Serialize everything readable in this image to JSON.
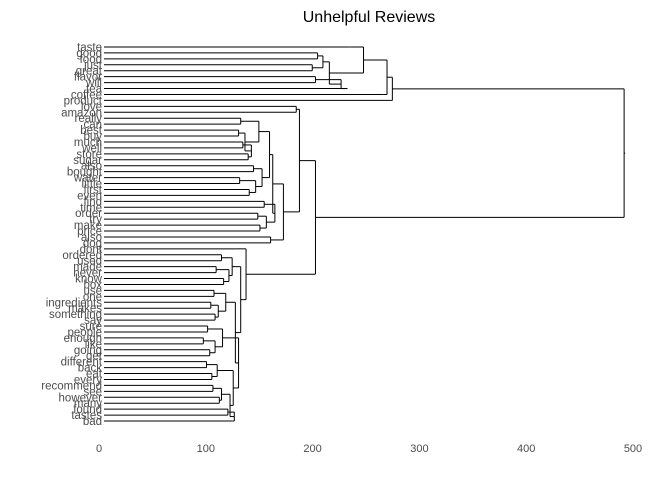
{
  "chart_data": {
    "type": "dendrogram",
    "orientation": "horizontal",
    "title": "Unhelpful Reviews",
    "xlabel": "",
    "ylabel": "",
    "xlim": [
      0,
      500
    ],
    "x_ticks": [
      0,
      100,
      200,
      300,
      400,
      500
    ],
    "grid": false,
    "leaves": [
      "taste",
      "good",
      "food",
      "just",
      "great",
      "flavor",
      "will",
      "tea",
      "coffee",
      "product",
      "love",
      "amazon",
      "really",
      "can",
      "best",
      "buy",
      "much",
      "well",
      "store",
      "sugar",
      "also",
      "bought",
      "water",
      "little",
      "first",
      "even",
      "find",
      "time",
      "order",
      "try",
      "make",
      "price",
      "also",
      "dog",
      "dont",
      "ordered",
      "used",
      "made",
      "never",
      "know",
      "box",
      "use",
      "one",
      "ingredients",
      "makes",
      "something",
      "say",
      "sure",
      "people",
      "enough",
      "like",
      "going",
      "get",
      "different",
      "back",
      "eat",
      "every",
      "recommend",
      "see",
      "however",
      "many",
      "found",
      "tastes",
      "bad"
    ],
    "tree": {
      "h": 487,
      "c": [
        {
          "h": 270,
          "c": [
            {
              "h": 265,
              "c": [
                {
                  "h": 243,
                  "c": [
                    {
                      "h": 230,
                      "c": [
                        0
                      ]
                    },
                    {
                      "h": 211,
                      "c": [
                        {
                          "h": 205,
                          "c": [
                            {
                              "h": 200,
                              "c": [
                                1,
                                2
                              ]
                            },
                            {
                              "h": 195,
                              "c": [
                                3,
                                4
                              ]
                            }
                          ]
                        },
                        {
                          "h": 222,
                          "c": [
                            {
                              "h": 198,
                              "c": [
                                5,
                                6
                              ]
                            },
                            {
                              "h": 228,
                              "c": [
                                7
                              ]
                            }
                          ]
                        }
                      ]
                    }
                  ]
                },
                {
                  "h": 262,
                  "c": [
                    8
                  ]
                }
              ]
            },
            {
              "h": 268,
              "c": [
                9
              ]
            }
          ]
        },
        {
          "h": 198,
          "c": [
            {
              "h": 183,
              "c": [
                {
                  "h": 180,
                  "c": [
                    10,
                    11
                  ]
                },
                {
                  "h": 168,
                  "c": [
                    {
                      "h": 158,
                      "c": [
                        {
                          "h": 155,
                          "c": [
                            {
                              "h": 145,
                              "c": [
                                {
                                  "h": 128,
                                  "c": [
                                    12,
                                    13
                                  ]
                                },
                                {
                                  "h": 132,
                                  "c": [
                                    {
                                      "h": 126,
                                      "c": [
                                        14,
                                        15
                                      ]
                                    },
                                    {
                                      "h": 138,
                                      "c": [
                                        {
                                          "h": 130,
                                          "c": [
                                            16,
                                            17
                                          ]
                                        },
                                        {
                                          "h": 135,
                                          "c": [
                                            18,
                                            19
                                          ]
                                        }
                                      ]
                                    }
                                  ]
                                }
                              ]
                            },
                            {
                              "h": 148,
                              "c": [
                                {
                                  "h": 140,
                                  "c": [
                                    20,
                                    21
                                  ]
                                },
                                {
                                  "h": 142,
                                  "c": [
                                    {
                                      "h": 127,
                                      "c": [
                                        22,
                                        23
                                      ]
                                    },
                                    {
                                      "h": 136,
                                      "c": [
                                        24,
                                        25
                                      ]
                                    }
                                  ]
                                }
                              ]
                            }
                          ]
                        },
                        {
                          "h": 160,
                          "c": [
                            {
                              "h": 150,
                              "c": [
                                26,
                                27
                              ]
                            },
                            {
                              "h": 152,
                              "c": [
                                {
                                  "h": 144,
                                  "c": [
                                    28,
                                    29
                                  ]
                                },
                                {
                                  "h": 146,
                                  "c": [
                                    30,
                                    31
                                  ]
                                }
                              ]
                            }
                          ]
                        }
                      ]
                    },
                    {
                      "h": 156,
                      "c": [
                        32,
                        33
                      ]
                    }
                  ]
                }
              ]
            },
            {
              "h": 133,
              "c": [
                {
                  "h": 124,
                  "c": [
                    34
                  ]
                },
                {
                  "h": 128,
                  "c": [
                    {
                      "h": 120,
                      "c": [
                        {
                          "h": 110,
                          "c": [
                            35,
                            36
                          ]
                        },
                        {
                          "h": 117,
                          "c": [
                            {
                              "h": 105,
                              "c": [
                                37,
                                38
                              ]
                            },
                            {
                              "h": 112,
                              "c": [
                                39,
                                40
                              ]
                            }
                          ]
                        }
                      ]
                    },
                    {
                      "h": 123,
                      "c": [
                        {
                          "h": 114,
                          "c": [
                            {
                              "h": 103,
                              "c": [
                                41,
                                42
                              ]
                            },
                            {
                              "h": 107,
                              "c": [
                                {
                                  "h": 100,
                                  "c": [
                                    43,
                                    44
                                  ]
                                },
                                {
                                  "h": 104,
                                  "c": [
                                    45,
                                    46
                                  ]
                                }
                              ]
                            }
                          ]
                        },
                        {
                          "h": 126,
                          "c": [
                            {
                              "h": 111,
                              "c": [
                                {
                                  "h": 97,
                                  "c": [
                                    47,
                                    48
                                  ]
                                },
                                {
                                  "h": 104,
                                  "c": [
                                    {
                                      "h": 93,
                                      "c": [
                                        49,
                                        50
                                      ]
                                    },
                                    {
                                      "h": 99,
                                      "c": [
                                        51,
                                        52
                                      ]
                                    }
                                  ]
                                }
                              ]
                            },
                            {
                              "h": 121,
                              "c": [
                                {
                                  "h": 106,
                                  "c": [
                                    {
                                      "h": 96,
                                      "c": [
                                        53,
                                        54
                                      ]
                                    },
                                    {
                                      "h": 101,
                                      "c": [
                                        55,
                                        56
                                      ]
                                    }
                                  ]
                                },
                                {
                                  "h": 118,
                                  "c": [
                                    {
                                      "h": 110,
                                      "c": [
                                        {
                                          "h": 102,
                                          "c": [
                                            57,
                                            58
                                          ]
                                        },
                                        {
                                          "h": 108,
                                          "c": [
                                            59,
                                            60
                                          ]
                                        }
                                      ]
                                    },
                                    {
                                      "h": 122,
                                      "c": [
                                        {
                                          "h": 116,
                                          "c": [
                                            61,
                                            62
                                          ]
                                        },
                                        {
                                          "h": 120,
                                          "c": [
                                            63
                                          ]
                                        }
                                      ]
                                    }
                                  ]
                                }
                              ]
                            }
                          ]
                        }
                      ]
                    }
                  ]
                }
              ]
            }
          ]
        }
      ]
    }
  }
}
